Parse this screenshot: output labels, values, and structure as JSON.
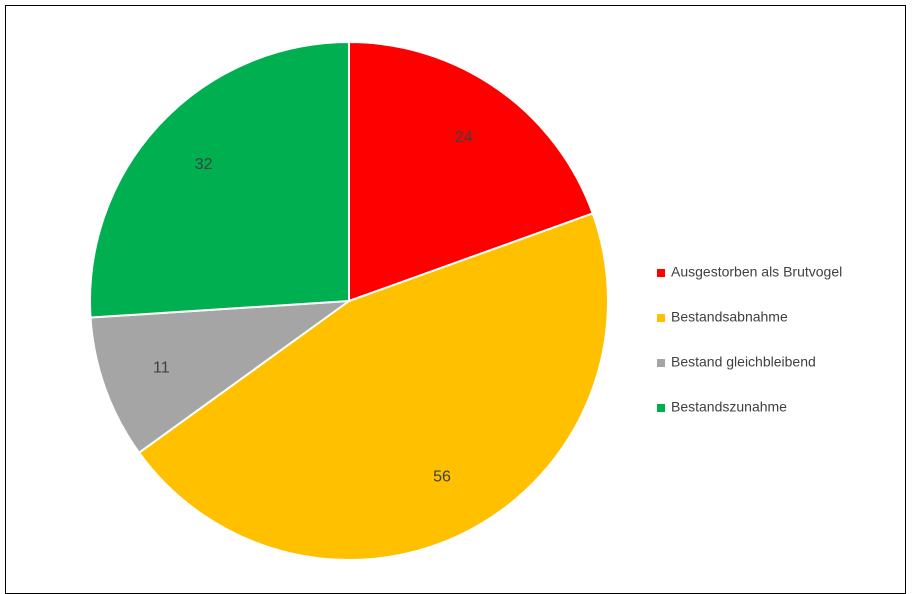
{
  "chart_data": {
    "type": "pie",
    "title": "",
    "categories": [
      "Ausgestorben als Brutvogel",
      "Bestandsabnahme",
      "Bestand gleichbleibend",
      "Bestandszunahme"
    ],
    "values": [
      24,
      56,
      11,
      32
    ],
    "colors": [
      "#ff0000",
      "#ffc000",
      "#a5a5a5",
      "#00b050"
    ],
    "start_angle_deg": 0,
    "direction": "clockwise",
    "data_labels": true,
    "legend_position": "right"
  }
}
